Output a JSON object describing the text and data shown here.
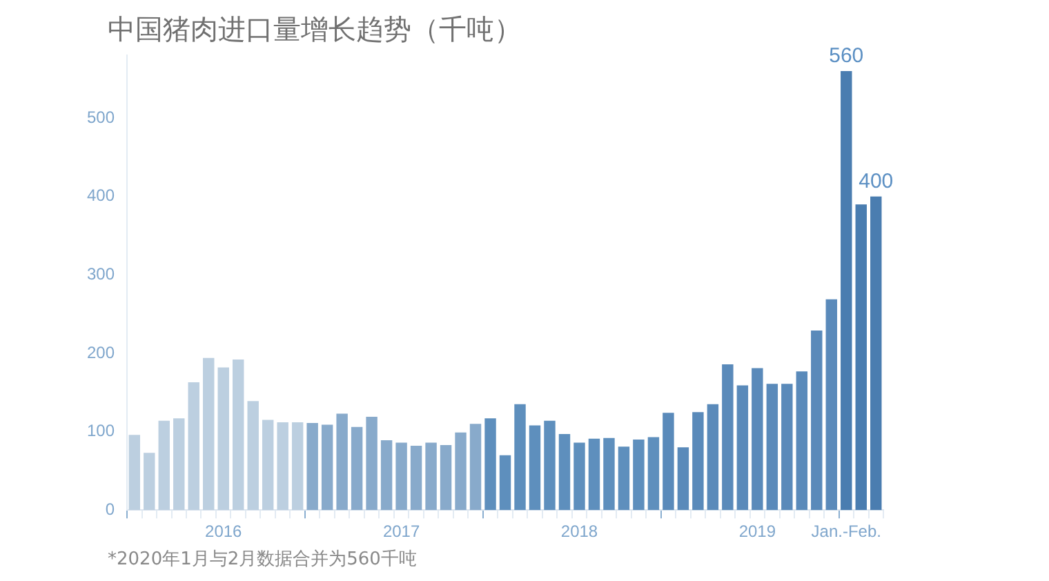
{
  "chart_data": {
    "type": "bar",
    "title": "中国猪肉进口量增长趋势（千吨）",
    "categories": [
      null,
      null,
      null,
      null,
      null,
      null,
      "2016",
      null,
      null,
      null,
      null,
      null,
      null,
      null,
      null,
      null,
      null,
      null,
      "2017",
      null,
      null,
      null,
      null,
      null,
      null,
      null,
      null,
      null,
      null,
      null,
      "2018",
      null,
      null,
      null,
      null,
      null,
      null,
      null,
      null,
      null,
      null,
      null,
      "2019",
      null,
      null,
      null,
      null,
      null,
      "Jan.-Feb.",
      null,
      null
    ],
    "values": [
      96,
      73,
      114,
      117,
      163,
      194,
      182,
      192,
      139,
      115,
      112,
      112,
      111,
      109,
      123,
      106,
      119,
      89,
      86,
      82,
      86,
      83,
      99,
      110,
      117,
      70,
      135,
      108,
      114,
      97,
      86,
      91,
      92,
      81,
      90,
      93,
      124,
      80,
      125,
      135,
      186,
      159,
      181,
      161,
      161,
      177,
      229,
      269,
      560,
      390,
      400
    ],
    "colors": [
      "#bccfe0",
      "#bccfe0",
      "#bccfe0",
      "#bccfe0",
      "#bccfe0",
      "#bccfe0",
      "#bccfe0",
      "#bccfe0",
      "#bccfe0",
      "#bccfe0",
      "#bccfe0",
      "#bccfe0",
      "#88aacb",
      "#88aacb",
      "#88aacb",
      "#88aacb",
      "#88aacb",
      "#88aacb",
      "#88aacb",
      "#88aacb",
      "#88aacb",
      "#88aacb",
      "#88aacb",
      "#88aacb",
      "#5e8fbd",
      "#5e8fbd",
      "#5e8fbd",
      "#5e8fbd",
      "#5e8fbd",
      "#5e8fbd",
      "#5e8fbd",
      "#5e8fbd",
      "#5e8fbd",
      "#5e8fbd",
      "#5e8fbd",
      "#5e8fbd",
      "#5a8aba",
      "#5a8aba",
      "#5a8aba",
      "#5a8aba",
      "#5a8aba",
      "#5a8aba",
      "#5a8aba",
      "#5a8aba",
      "#5a8aba",
      "#5a8aba",
      "#5a8aba",
      "#5a8aba",
      "#4a7db0",
      "#4a7db0",
      "#4a7db0"
    ],
    "value_labels": [
      null,
      null,
      null,
      null,
      null,
      null,
      null,
      null,
      null,
      null,
      null,
      null,
      null,
      null,
      null,
      null,
      null,
      null,
      null,
      null,
      null,
      null,
      null,
      null,
      null,
      null,
      null,
      null,
      null,
      null,
      null,
      null,
      null,
      null,
      null,
      null,
      null,
      null,
      null,
      null,
      null,
      null,
      null,
      null,
      null,
      null,
      null,
      null,
      "560",
      null,
      "400"
    ],
    "ylim": [
      0,
      580
    ],
    "yticks": [
      0,
      100,
      200,
      300,
      400,
      500
    ],
    "grid": false,
    "legend": false,
    "annotations": [
      "*2020年1月与2月数据合并为560千吨"
    ]
  }
}
